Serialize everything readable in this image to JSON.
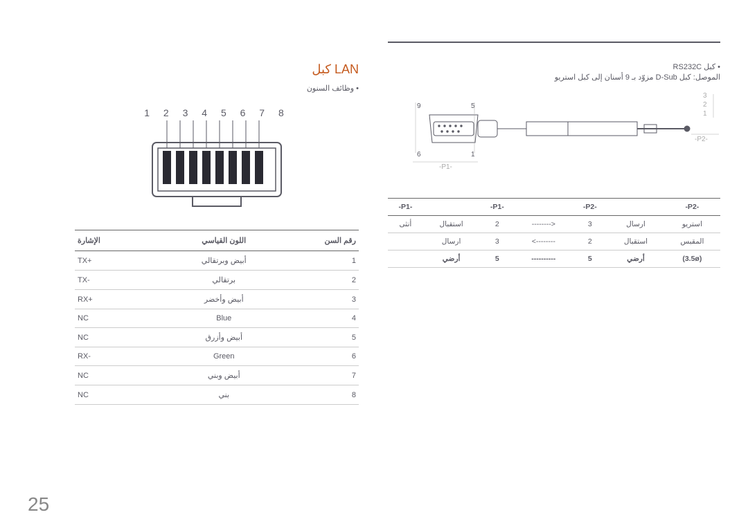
{
  "page_number": "25",
  "left": {
    "heading": "كبل LAN",
    "subnote": "وظائف السنون",
    "pin_numbers": "1 2 3 4 5 6 7 8",
    "table": {
      "headers": [
        "الإشارة",
        "اللون القياسي",
        "رقم السن"
      ],
      "rows": [
        [
          "TX+",
          "أبيض وبرتقالي",
          "1"
        ],
        [
          "TX-",
          "برتقالي",
          "2"
        ],
        [
          "RX+",
          "أبيض وأخضر",
          "3"
        ],
        [
          "NC",
          "Blue",
          "4"
        ],
        [
          "NC",
          "أبيض وأزرق",
          "5"
        ],
        [
          "RX-",
          "Green",
          "6"
        ],
        [
          "NC",
          "أبيض وبني",
          "7"
        ],
        [
          "NC",
          "بني",
          "8"
        ]
      ]
    }
  },
  "right": {
    "title": "كبل RS232C",
    "desc": "الموصل: كبل D-Sub مزوّد بـ 9 أسنان إلى كبل استريو",
    "p1_label": "-P1-",
    "p2_label": "-P2-",
    "pin_labels": {
      "tl": "9",
      "tr": "5",
      "bl": "6",
      "br": "1",
      "r1": "3",
      "r2": "2",
      "r3": "1"
    },
    "table": {
      "headers": [
        "-P1-",
        "",
        "-P1-",
        "",
        "-P2-",
        "",
        "-P2-"
      ],
      "rows": [
        [
          "أنثى",
          "استقبال",
          "2",
          "-------->",
          "3",
          "ارسال",
          "استريو"
        ],
        [
          "",
          "ارسال",
          "3",
          "<--------",
          "2",
          "استقبال",
          "المقبس"
        ],
        [
          "",
          "أرضي",
          "5",
          "----------",
          "5",
          "أرضي",
          "(3.5ø)"
        ]
      ]
    }
  }
}
